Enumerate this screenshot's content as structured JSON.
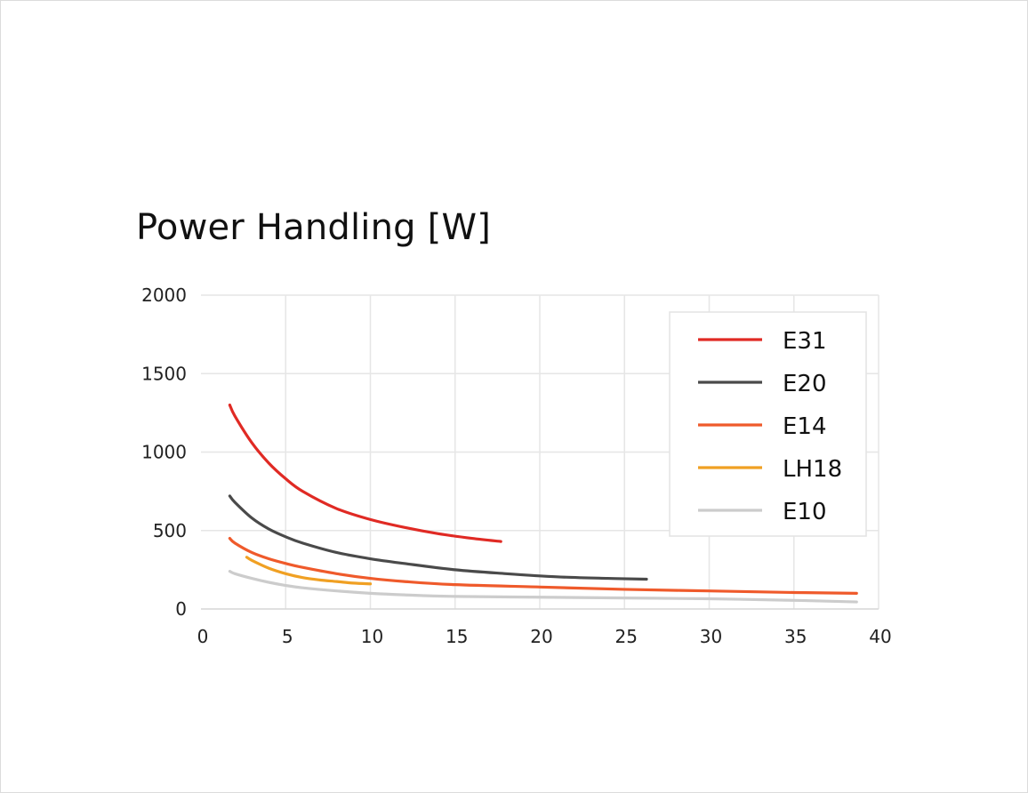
{
  "chart_data": {
    "type": "line",
    "title": "Power Handling [W]",
    "xlabel": "",
    "ylabel": "",
    "xlim": [
      0,
      40
    ],
    "ylim": [
      0,
      2000
    ],
    "xticks": [
      0,
      5,
      10,
      15,
      20,
      25,
      30,
      35,
      40
    ],
    "yticks": [
      0,
      500,
      1000,
      1500,
      2000
    ],
    "grid": true,
    "legend_position": "top-right",
    "series": [
      {
        "name": "E31",
        "color": "#e02a24",
        "x": [
          1.7,
          2,
          3,
          4,
          5,
          6,
          8,
          10,
          12,
          14,
          16,
          17.7
        ],
        "y": [
          1300,
          1230,
          1060,
          930,
          830,
          750,
          640,
          570,
          520,
          480,
          450,
          430
        ]
      },
      {
        "name": "E20",
        "color": "#4a4a4a",
        "x": [
          1.7,
          2,
          3,
          4,
          5,
          6,
          8,
          10,
          12,
          15,
          18,
          21,
          24,
          26.3
        ],
        "y": [
          720,
          680,
          580,
          510,
          460,
          420,
          360,
          320,
          290,
          250,
          225,
          205,
          195,
          190
        ]
      },
      {
        "name": "E14",
        "color": "#ef5a2b",
        "x": [
          1.7,
          2,
          3,
          4,
          5,
          6,
          8,
          10,
          12,
          15,
          20,
          25,
          30,
          35,
          38.7
        ],
        "y": [
          450,
          420,
          360,
          320,
          290,
          265,
          225,
          195,
          175,
          155,
          140,
          125,
          115,
          105,
          100
        ]
      },
      {
        "name": "LH18",
        "color": "#f0a023",
        "x": [
          2.7,
          3,
          4,
          5,
          6,
          7,
          8,
          9,
          10
        ],
        "y": [
          330,
          310,
          260,
          225,
          200,
          185,
          175,
          165,
          160
        ]
      },
      {
        "name": "E10",
        "color": "#cccccc",
        "x": [
          1.7,
          2,
          3,
          4,
          5,
          6,
          8,
          10,
          12,
          15,
          20,
          25,
          30,
          35,
          38.7
        ],
        "y": [
          240,
          225,
          195,
          170,
          150,
          135,
          115,
          100,
          90,
          80,
          75,
          70,
          65,
          55,
          45
        ]
      }
    ]
  }
}
